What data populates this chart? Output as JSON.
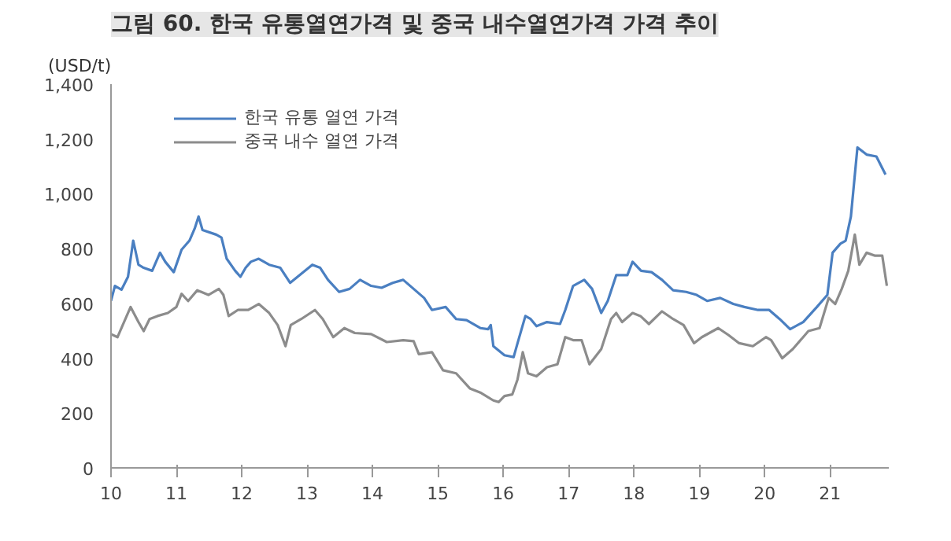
{
  "chart_data": {
    "type": "line",
    "title": "그림 60. 한국 유통열연가격 및 중국 내수열연가격 가격 추이",
    "ylabel": "(USD/t)",
    "xlim": [
      2010,
      2021.9
    ],
    "xticks": [
      {
        "value": 2010,
        "label": "10"
      },
      {
        "value": 2011,
        "label": "11"
      },
      {
        "value": 2012,
        "label": "12"
      },
      {
        "value": 2013,
        "label": "13"
      },
      {
        "value": 2014,
        "label": "14"
      },
      {
        "value": 2015,
        "label": "15"
      },
      {
        "value": 2016,
        "label": "16"
      },
      {
        "value": 2017,
        "label": "17"
      },
      {
        "value": 2018,
        "label": "18"
      },
      {
        "value": 2019,
        "label": "19"
      },
      {
        "value": 2020,
        "label": "20"
      },
      {
        "value": 2021,
        "label": "21"
      }
    ],
    "ylim": [
      0,
      1400
    ],
    "yticks": [
      0,
      {
        "value": 200,
        "label": "200"
      },
      {
        "value": 400,
        "label": "400"
      },
      {
        "value": 600,
        "label": "600"
      },
      {
        "value": 800,
        "label": "800"
      },
      {
        "value": 1000,
        "label": "1,000"
      },
      {
        "value": 1200,
        "label": "1,200"
      },
      {
        "value": 1400,
        "label": "1,400"
      }
    ],
    "grid": false,
    "legend": "top left",
    "series": [
      {
        "name": "한국 유통 열연 가격",
        "color": "#4a7fc1",
        "x": [
          2010.0,
          2010.06,
          2010.16,
          2010.26,
          2010.34,
          2010.42,
          2010.5,
          2010.63,
          2010.75,
          2010.83,
          2010.96,
          2011.08,
          2011.2,
          2011.28,
          2011.34,
          2011.4,
          2011.61,
          2011.69,
          2011.77,
          2011.9,
          2011.98,
          2012.06,
          2012.14,
          2012.26,
          2012.42,
          2012.59,
          2012.74,
          2012.91,
          2013.08,
          2013.2,
          2013.32,
          2013.49,
          2013.65,
          2013.81,
          2013.98,
          2014.14,
          2014.31,
          2014.47,
          2014.63,
          2014.79,
          2014.91,
          2015.12,
          2015.28,
          2015.44,
          2015.65,
          2015.77,
          2015.81,
          2015.85,
          2016.02,
          2016.16,
          2016.22,
          2016.34,
          2016.42,
          2016.51,
          2016.67,
          2016.87,
          2016.95,
          2017.07,
          2017.24,
          2017.36,
          2017.5,
          2017.6,
          2017.73,
          2017.9,
          2017.98,
          2018.11,
          2018.27,
          2018.43,
          2018.6,
          2018.8,
          2018.96,
          2019.12,
          2019.32,
          2019.52,
          2019.69,
          2019.9,
          2020.07,
          2020.23,
          2020.39,
          2020.59,
          2020.8,
          2020.96,
          2021.04,
          2021.16,
          2021.24,
          2021.32,
          2021.42,
          2021.56,
          2021.71,
          2021.85
        ],
        "values": [
          609,
          664,
          650,
          697,
          829,
          741,
          730,
          719,
          785,
          752,
          714,
          796,
          829,
          873,
          917,
          868,
          851,
          840,
          763,
          719,
          697,
          730,
          752,
          763,
          741,
          730,
          675,
          708,
          741,
          730,
          686,
          642,
          653,
          686,
          664,
          657,
          675,
          686,
          653,
          620,
          576,
          587,
          543,
          539,
          510,
          506,
          521,
          444,
          411,
          404,
          455,
          554,
          543,
          517,
          532,
          525,
          576,
          664,
          686,
          653,
          565,
          609,
          703,
          703,
          752,
          719,
          714,
          686,
          648,
          642,
          631,
          609,
          620,
          598,
          587,
          576,
          576,
          543,
          506,
          532,
          587,
          631,
          785,
          818,
          829,
          917,
          1169,
          1143,
          1136,
          1070
        ]
      },
      {
        "name": "중국 내수 열연 가격",
        "color": "#8c8c8c",
        "x": [
          2010.0,
          2010.1,
          2010.22,
          2010.3,
          2010.42,
          2010.5,
          2010.59,
          2010.71,
          2010.87,
          2011.0,
          2011.08,
          2011.18,
          2011.32,
          2011.49,
          2011.65,
          2011.72,
          2011.8,
          2011.94,
          2012.1,
          2012.26,
          2012.42,
          2012.55,
          2012.67,
          2012.75,
          2012.91,
          2013.12,
          2013.24,
          2013.4,
          2013.57,
          2013.73,
          2013.98,
          2014.22,
          2014.47,
          2014.63,
          2014.71,
          2014.91,
          2015.08,
          2015.28,
          2015.49,
          2015.65,
          2015.85,
          2015.93,
          2016.02,
          2016.14,
          2016.22,
          2016.3,
          2016.38,
          2016.51,
          2016.67,
          2016.83,
          2016.95,
          2017.07,
          2017.2,
          2017.32,
          2017.5,
          2017.65,
          2017.73,
          2017.82,
          2017.98,
          2018.1,
          2018.23,
          2018.43,
          2018.6,
          2018.76,
          2018.92,
          2019.04,
          2019.29,
          2019.45,
          2019.61,
          2019.82,
          2020.02,
          2020.1,
          2020.27,
          2020.43,
          2020.67,
          2020.84,
          2020.98,
          2021.08,
          2021.18,
          2021.28,
          2021.38,
          2021.45,
          2021.56,
          2021.69,
          2021.8,
          2021.87
        ],
        "values": [
          488,
          477,
          543,
          587,
          532,
          499,
          543,
          554,
          565,
          587,
          635,
          609,
          648,
          631,
          653,
          631,
          554,
          576,
          576,
          598,
          565,
          521,
          444,
          521,
          543,
          576,
          543,
          477,
          510,
          492,
          488,
          459,
          466,
          462,
          415,
          422,
          356,
          345,
          290,
          275,
          246,
          240,
          262,
          268,
          323,
          422,
          345,
          334,
          367,
          378,
          477,
          466,
          466,
          378,
          433,
          543,
          565,
          532,
          565,
          554,
          525,
          571,
          543,
          521,
          455,
          477,
          510,
          484,
          455,
          444,
          477,
          466,
          400,
          433,
          499,
          510,
          620,
          598,
          653,
          719,
          851,
          741,
          785,
          774,
          774,
          664
        ]
      }
    ]
  }
}
